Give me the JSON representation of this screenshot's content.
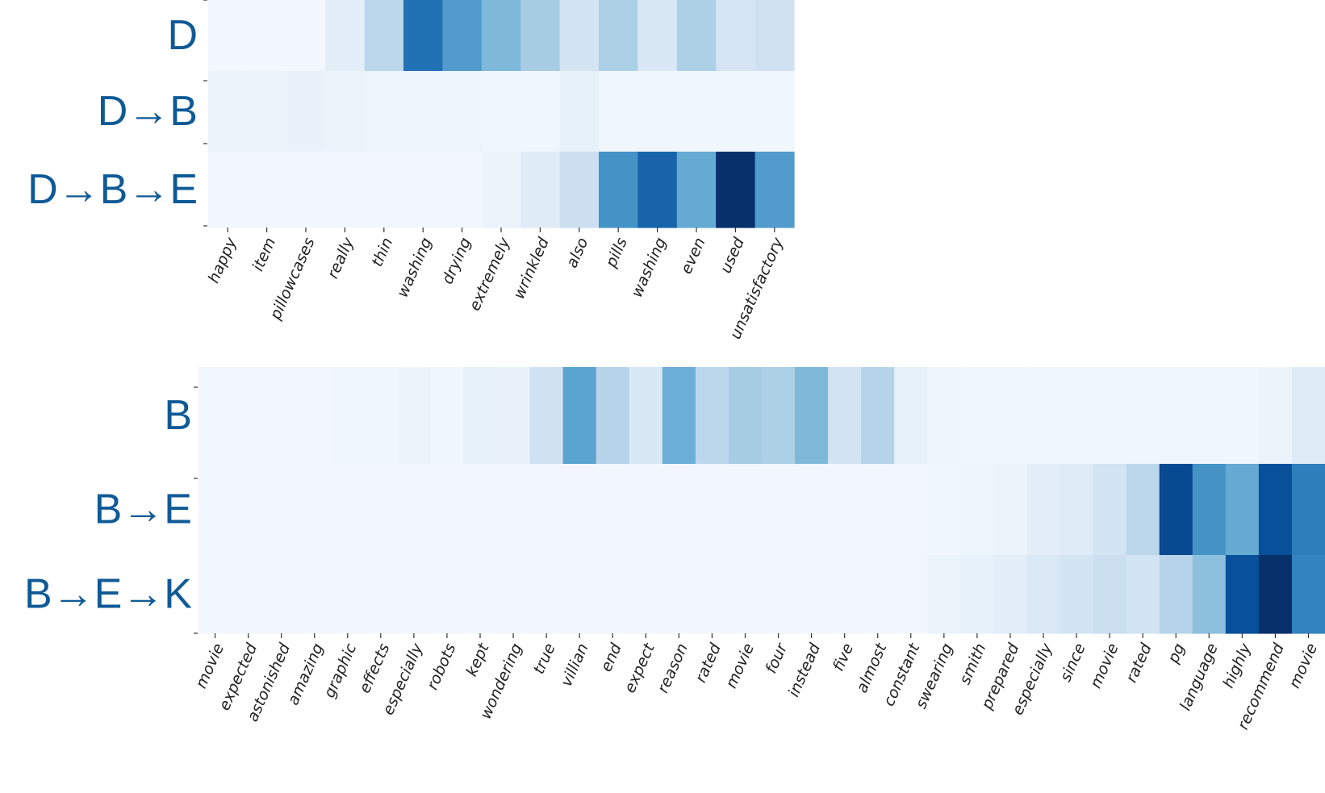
{
  "chart_data": [
    {
      "type": "heatmap",
      "row_labels": [
        "D",
        "D→B",
        "D→B→E"
      ],
      "columns": [
        "happy",
        "item",
        "pillowcases",
        "really",
        "thin",
        "washing",
        "drying",
        "extremely",
        "wrinkled",
        "also",
        "pills",
        "washing",
        "even",
        "used",
        "unsatisfactory"
      ],
      "values": [
        [
          0.02,
          0.02,
          0.03,
          0.1,
          0.28,
          0.75,
          0.58,
          0.45,
          0.35,
          0.18,
          0.33,
          0.15,
          0.33,
          0.17,
          0.2
        ],
        [
          0.06,
          0.06,
          0.07,
          0.06,
          0.05,
          0.05,
          0.05,
          0.04,
          0.04,
          0.08,
          0.04,
          0.04,
          0.04,
          0.04,
          0.04
        ],
        [
          0.03,
          0.03,
          0.03,
          0.03,
          0.03,
          0.03,
          0.03,
          0.06,
          0.12,
          0.22,
          0.62,
          0.8,
          0.52,
          1.0,
          0.58
        ]
      ],
      "colormap": "Blues",
      "grid": false
    },
    {
      "type": "heatmap",
      "row_labels": [
        "B",
        "B→E",
        "B→E→K"
      ],
      "columns": [
        "movie",
        "expected",
        "astonished",
        "amazing",
        "graphic",
        "effects",
        "especially",
        "robots",
        "kept",
        "wondering",
        "true",
        "villian",
        "end",
        "expect",
        "reason",
        "rated",
        "movie",
        "four",
        "instead",
        "five",
        "almost",
        "constant",
        "swearing",
        "smith",
        "prepared",
        "especially",
        "since",
        "movie",
        "rated",
        "pg",
        "language",
        "highly",
        "recommend",
        "movie"
      ],
      "values": [
        [
          0.03,
          0.03,
          0.03,
          0.03,
          0.04,
          0.04,
          0.06,
          0.04,
          0.08,
          0.07,
          0.2,
          0.55,
          0.3,
          0.15,
          0.5,
          0.28,
          0.35,
          0.33,
          0.45,
          0.18,
          0.3,
          0.08,
          0.05,
          0.04,
          0.04,
          0.04,
          0.04,
          0.04,
          0.04,
          0.04,
          0.04,
          0.04,
          0.06,
          0.12
        ],
        [
          0.03,
          0.03,
          0.03,
          0.03,
          0.03,
          0.03,
          0.03,
          0.03,
          0.03,
          0.03,
          0.03,
          0.03,
          0.03,
          0.03,
          0.03,
          0.03,
          0.03,
          0.03,
          0.03,
          0.03,
          0.03,
          0.03,
          0.04,
          0.05,
          0.06,
          0.1,
          0.12,
          0.18,
          0.28,
          0.9,
          0.62,
          0.52,
          0.88,
          0.7
        ],
        [
          0.03,
          0.03,
          0.03,
          0.03,
          0.03,
          0.03,
          0.03,
          0.03,
          0.03,
          0.03,
          0.03,
          0.03,
          0.03,
          0.03,
          0.03,
          0.03,
          0.03,
          0.03,
          0.03,
          0.03,
          0.03,
          0.03,
          0.06,
          0.08,
          0.1,
          0.14,
          0.18,
          0.22,
          0.18,
          0.3,
          0.42,
          0.88,
          1.0,
          0.68
        ]
      ],
      "colormap": "Blues",
      "grid": false
    }
  ]
}
